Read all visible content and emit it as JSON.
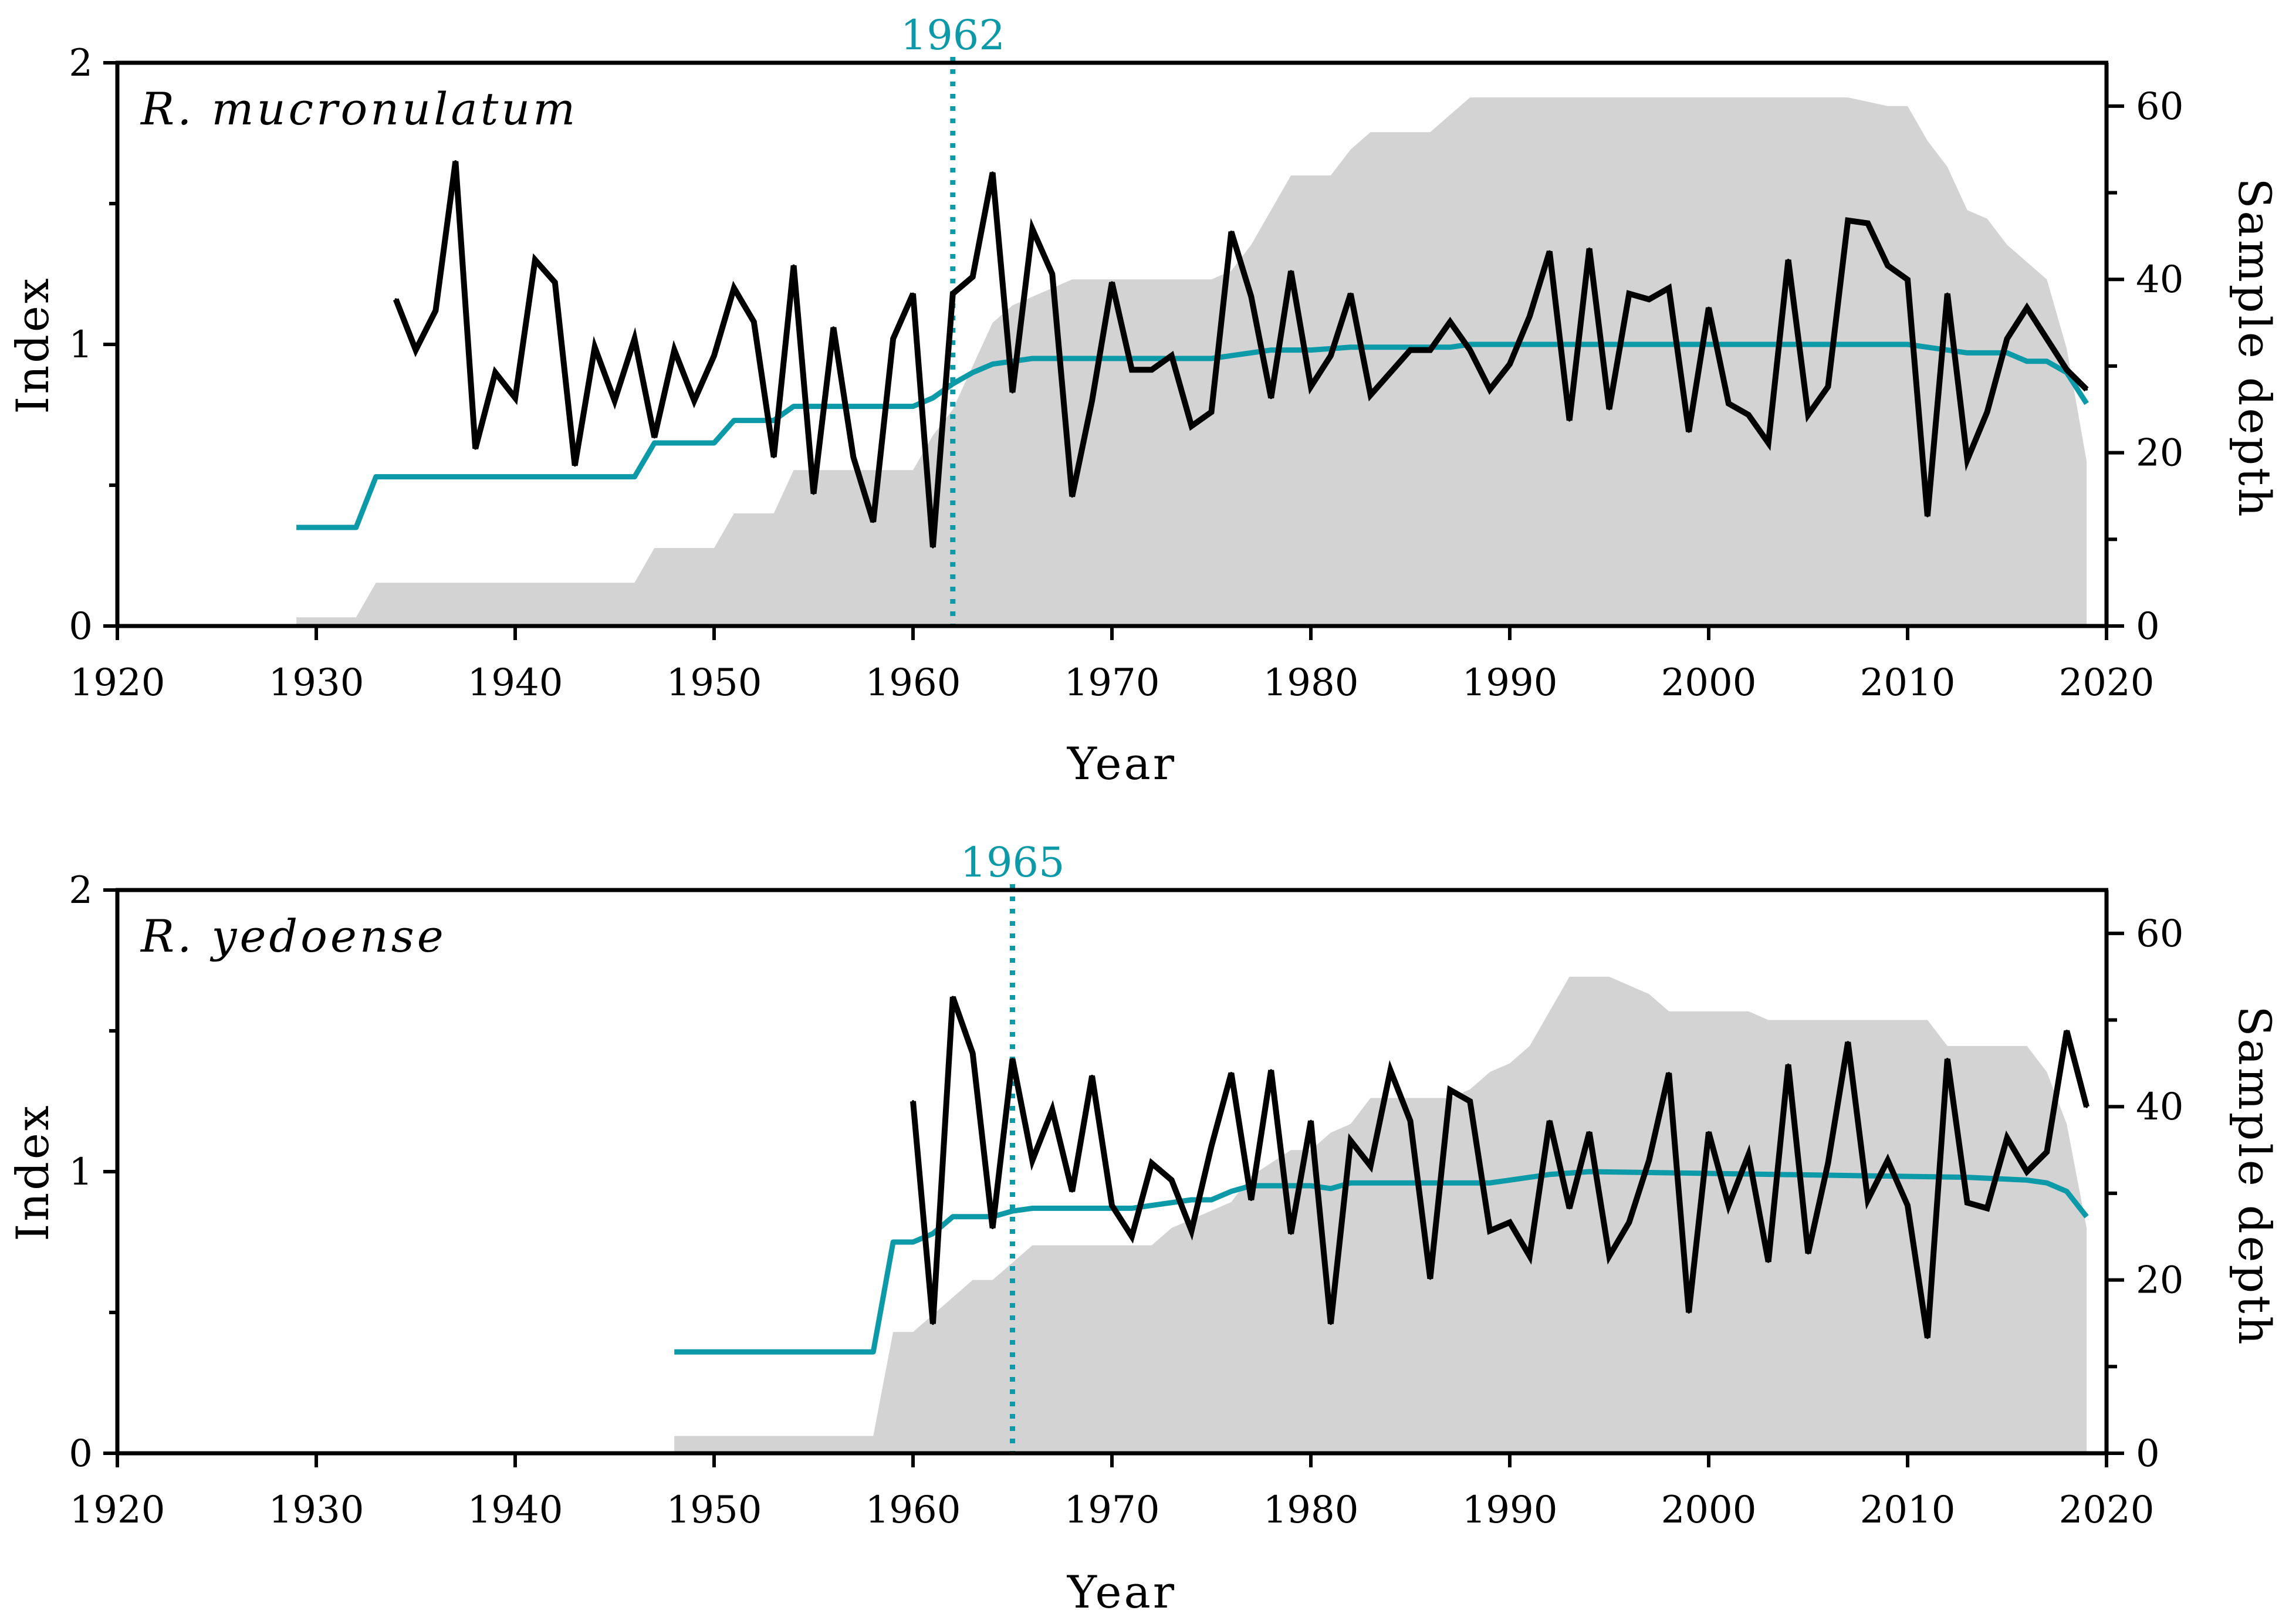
{
  "colors": {
    "index_line": "#000000",
    "rbar_line": "#0d9aa8",
    "sample_depth_fill": "#d3d3d3",
    "marker": "#0d9aa8",
    "axes": "#000000"
  },
  "chart_data": [
    {
      "type": "line",
      "title": "R. mucronulatum",
      "xlabel": "Year",
      "ylabel": "Index",
      "y2label": "Sample depth",
      "xlim": [
        1920,
        2020
      ],
      "ylim": [
        0,
        2
      ],
      "y2lim": [
        0,
        65
      ],
      "xticks": [
        1920,
        1930,
        1940,
        1950,
        1960,
        1970,
        1980,
        1990,
        2000,
        2010,
        2020
      ],
      "yticks": [
        0,
        1,
        2
      ],
      "y2ticks": [
        0,
        20,
        40,
        60
      ],
      "marker": {
        "x": 1962,
        "label": "1962"
      },
      "series": [
        {
          "role": "index",
          "x": [
            1934,
            1935,
            1936,
            1937,
            1938,
            1939,
            1940,
            1941,
            1942,
            1943,
            1944,
            1945,
            1946,
            1947,
            1948,
            1949,
            1950,
            1951,
            1952,
            1953,
            1954,
            1955,
            1956,
            1957,
            1958,
            1959,
            1960,
            1961,
            1962,
            1963,
            1964,
            1965,
            1966,
            1967,
            1968,
            1969,
            1970,
            1971,
            1972,
            1973,
            1974,
            1975,
            1976,
            1977,
            1978,
            1979,
            1980,
            1981,
            1982,
            1983,
            1984,
            1985,
            1986,
            1987,
            1988,
            1989,
            1990,
            1991,
            1992,
            1993,
            1994,
            1995,
            1996,
            1997,
            1998,
            1999,
            2000,
            2001,
            2002,
            2003,
            2004,
            2005,
            2006,
            2007,
            2008,
            2009,
            2010,
            2011,
            2012,
            2013,
            2014,
            2015,
            2016,
            2017,
            2018,
            2019
          ],
          "values": [
            1.16,
            0.98,
            1.12,
            1.65,
            0.63,
            0.9,
            0.81,
            1.3,
            1.22,
            0.57,
            0.99,
            0.8,
            1.02,
            0.67,
            0.98,
            0.8,
            0.96,
            1.2,
            1.08,
            0.6,
            1.28,
            0.47,
            1.06,
            0.6,
            0.37,
            1.02,
            1.18,
            0.28,
            1.18,
            1.24,
            1.61,
            0.83,
            1.41,
            1.25,
            0.46,
            0.8,
            1.22,
            0.91,
            0.91,
            0.96,
            0.71,
            0.76,
            1.4,
            1.17,
            0.81,
            1.26,
            0.85,
            0.96,
            1.18,
            0.82,
            0.9,
            0.98,
            0.98,
            1.08,
            0.98,
            0.84,
            0.93,
            1.1,
            1.33,
            0.73,
            1.34,
            0.77,
            1.18,
            1.16,
            1.2,
            0.69,
            1.13,
            0.79,
            0.75,
            0.65,
            1.3,
            0.75,
            0.85,
            1.44,
            1.43,
            1.28,
            1.23,
            0.39,
            1.18,
            0.59,
            0.76,
            1.02,
            1.13,
            1.02,
            0.91,
            0.84
          ]
        },
        {
          "role": "rbar",
          "x": [
            1929,
            1932,
            1933,
            1946,
            1947,
            1950,
            1951,
            1953,
            1954,
            1960,
            1961,
            1962,
            1963,
            1964,
            1966,
            1975,
            1976,
            1978,
            1980,
            1982,
            1983,
            1987,
            1988,
            2010,
            2011,
            2013,
            2015,
            2016,
            2017,
            2018,
            2019
          ],
          "values": [
            0.35,
            0.35,
            0.53,
            0.53,
            0.65,
            0.65,
            0.73,
            0.73,
            0.78,
            0.78,
            0.81,
            0.86,
            0.9,
            0.93,
            0.95,
            0.95,
            0.96,
            0.98,
            0.98,
            0.99,
            0.99,
            0.99,
            1.0,
            1.0,
            0.99,
            0.97,
            0.97,
            0.94,
            0.94,
            0.9,
            0.79
          ]
        },
        {
          "role": "sample_depth",
          "x": [
            1929,
            1932,
            1933,
            1946,
            1947,
            1950,
            1951,
            1953,
            1954,
            1960,
            1961,
            1962,
            1963,
            1964,
            1965,
            1966,
            1967,
            1968,
            1975,
            1976,
            1977,
            1978,
            1979,
            1981,
            1982,
            1983,
            1986,
            1987,
            1988,
            1989,
            2007,
            2009,
            2010,
            2011,
            2012,
            2013,
            2014,
            2015,
            2016,
            2017,
            2018,
            2019
          ],
          "values": [
            1,
            1,
            5,
            5,
            9,
            9,
            13,
            13,
            18,
            18,
            22,
            25,
            30,
            35,
            37,
            38,
            39,
            40,
            40,
            41,
            44,
            48,
            52,
            52,
            55,
            57,
            57,
            59,
            61,
            61,
            61,
            60,
            60,
            56,
            53,
            48,
            47,
            44,
            42,
            40,
            32,
            19
          ]
        }
      ]
    },
    {
      "type": "line",
      "title": "R. yedoense",
      "xlabel": "Year",
      "ylabel": "Index",
      "y2label": "Sample depth",
      "xlim": [
        1920,
        2020
      ],
      "ylim": [
        0,
        2
      ],
      "y2lim": [
        0,
        65
      ],
      "xticks": [
        1920,
        1930,
        1940,
        1950,
        1960,
        1970,
        1980,
        1990,
        2000,
        2010,
        2020
      ],
      "yticks": [
        0,
        1,
        2
      ],
      "y2ticks": [
        0,
        20,
        40,
        60
      ],
      "marker": {
        "x": 1965,
        "label": "1965"
      },
      "series": [
        {
          "role": "index",
          "x": [
            1960,
            1961,
            1962,
            1963,
            1964,
            1965,
            1966,
            1967,
            1968,
            1969,
            1970,
            1971,
            1972,
            1973,
            1974,
            1975,
            1976,
            1977,
            1978,
            1979,
            1980,
            1981,
            1982,
            1983,
            1984,
            1985,
            1986,
            1987,
            1988,
            1989,
            1990,
            1991,
            1992,
            1993,
            1994,
            1995,
            1996,
            1997,
            1998,
            1999,
            2000,
            2001,
            2002,
            2003,
            2004,
            2005,
            2006,
            2007,
            2008,
            2009,
            2010,
            2011,
            2012,
            2013,
            2014,
            2015,
            2016,
            2017,
            2018,
            2019
          ],
          "values": [
            1.25,
            0.46,
            1.62,
            1.42,
            0.8,
            1.4,
            1.04,
            1.22,
            0.93,
            1.34,
            0.88,
            0.77,
            1.03,
            0.97,
            0.79,
            1.09,
            1.35,
            0.9,
            1.36,
            0.78,
            1.18,
            0.46,
            1.11,
            1.02,
            1.36,
            1.18,
            0.62,
            1.29,
            1.25,
            0.79,
            0.82,
            0.7,
            1.18,
            0.87,
            1.14,
            0.7,
            0.82,
            1.04,
            1.35,
            0.5,
            1.14,
            0.88,
            1.06,
            0.68,
            1.38,
            0.71,
            1.03,
            1.46,
            0.9,
            1.04,
            0.88,
            0.41,
            1.4,
            0.89,
            0.87,
            1.12,
            1.0,
            1.07,
            1.5,
            1.23
          ]
        },
        {
          "role": "rbar",
          "x": [
            1948,
            1958,
            1959,
            1960,
            1961,
            1962,
            1964,
            1965,
            1966,
            1971,
            1972,
            1974,
            1975,
            1976,
            1977,
            1980,
            1981,
            1982,
            1989,
            1990,
            1991,
            1992,
            1994,
            2013,
            2016,
            2017,
            2018,
            2019
          ],
          "values": [
            0.36,
            0.36,
            0.75,
            0.75,
            0.78,
            0.84,
            0.84,
            0.86,
            0.87,
            0.87,
            0.88,
            0.9,
            0.9,
            0.93,
            0.95,
            0.95,
            0.94,
            0.96,
            0.96,
            0.97,
            0.98,
            0.99,
            1.0,
            0.98,
            0.97,
            0.96,
            0.93,
            0.84
          ]
        },
        {
          "role": "sample_depth",
          "x": [
            1948,
            1958,
            1959,
            1960,
            1961,
            1962,
            1963,
            1964,
            1965,
            1966,
            1967,
            1968,
            1972,
            1973,
            1974,
            1975,
            1976,
            1977,
            1979,
            1980,
            1981,
            1982,
            1983,
            1987,
            1988,
            1989,
            1990,
            1991,
            1993,
            1995,
            1996,
            1997,
            1998,
            2002,
            2003,
            2009,
            2010,
            2011,
            2012,
            2016,
            2017,
            2018,
            2019
          ],
          "values": [
            2,
            2,
            14,
            14,
            16,
            18,
            20,
            20,
            22,
            24,
            24,
            24,
            24,
            26,
            27,
            28,
            29,
            32,
            35,
            35,
            37,
            38,
            41,
            41,
            42,
            44,
            45,
            47,
            55,
            55,
            54,
            53,
            51,
            51,
            50,
            50,
            50,
            50,
            47,
            47,
            44,
            38,
            26
          ]
        }
      ]
    }
  ]
}
